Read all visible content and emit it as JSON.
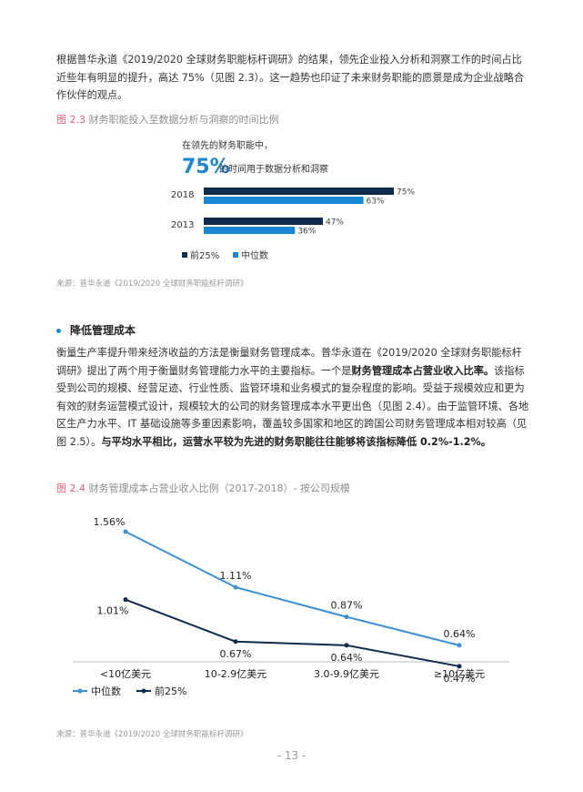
{
  "intro_paragraph": "根据普华永道《2019/2020 全球财务职能标杆调研》的结果，领先企业投入分析和洞察工作的时间占比近些年有明显的提升，高达 75%（见图 2.3）。这一趋势也印证了未来财务职能的愿景是成为企业战略合作伙伴的观点。",
  "figure_2_3": {
    "fig_label": "图 2.3",
    "title": "财务职能投入至数据分析与洞察的时间比例",
    "callout_line1": "在领先的财务职能中，",
    "callout_big": "75%",
    "callout_line2": "的时间用于数据分析和洞察",
    "source": "来源：普华永道《2019/2020 全球财务职能标杆调研》",
    "chart_data": {
      "type": "bar",
      "orientation": "horizontal",
      "categories": [
        "2018",
        "2013"
      ],
      "series": [
        {
          "name": "前25%",
          "color": "#0f2a4d",
          "values": [
            75,
            47
          ],
          "labels": [
            "75%",
            "47%"
          ]
        },
        {
          "name": "中位数",
          "color": "#1a87d5",
          "values": [
            63,
            36
          ],
          "labels": [
            "63%",
            "36%"
          ]
        }
      ],
      "xlim": [
        0,
        100
      ],
      "legend": "bottom-left"
    }
  },
  "section": {
    "heading": "降低管理成本",
    "p1": "衡量生产率提升带来经济收益的方法是衡量财务管理成本。普华永道在《2019/2020 全球财务职能标杆调研》提出了两个用于衡量财务管理能力水平的主要指标。一个是",
    "p1_bold": "财务管理成本占营业收入比率。",
    "p1_rest": "该指标受到公司的规模、经营足迹、行业性质、监管环境和业务模式的复杂程度的影响。受益于规模效应和更为有效的财务运营模式设计，规模较大的公司的财务管理成本水平更出色（见图 2.4）。由于监管环境、各地区生产力水平、IT 基础设施等多重因素影响，覆盖较多国家和地区的跨国公司财务管理成本相对较高（见图 2.5）。",
    "p1_bold2": "与平均水平相比，运营水平较为先进的财务职能往往能够将该指标降低 0.2%-1.2%。"
  },
  "figure_2_4": {
    "fig_label": "图 2.4",
    "title": "财务管理成本占营业收入比例（2017-2018）- 按公司规模",
    "source": "来源：普华永道《2019/2020 全球财务职能标杆调研》",
    "chart_data": {
      "type": "line",
      "categories": [
        "<10亿美元",
        "10-2.9亿美元",
        "3.0-9.9亿美元",
        "≥10亿美元"
      ],
      "series": [
        {
          "name": "中位数",
          "color": "#3b8fd6",
          "values": [
            1.56,
            1.11,
            0.87,
            0.64
          ],
          "labels": [
            "1.56%",
            "1.11%",
            "0.87%",
            "0.64%"
          ]
        },
        {
          "name": "前25%",
          "color": "#0f2a4d",
          "values": [
            1.01,
            0.67,
            0.64,
            0.47
          ],
          "labels": [
            "1.01%",
            "0.67%",
            "0.64%",
            "0.47%"
          ]
        }
      ],
      "ylim": [
        0.3,
        1.7
      ],
      "legend": "bottom-left"
    }
  },
  "page_number": "- 13 -"
}
